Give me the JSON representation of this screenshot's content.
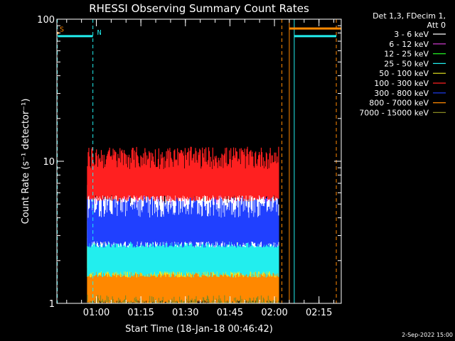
{
  "chart_data": {
    "type": "line",
    "title": "RHESSI Observing Summary Count Rates",
    "xlabel": "Start Time (18-Jan-18 00:46:42)",
    "ylabel": "Count Rate (s⁻¹ detector⁻¹)",
    "yscale": "log",
    "ylim": [
      1,
      100
    ],
    "y_ticks": [
      "1",
      "10",
      "100"
    ],
    "xlim": [
      "00:46:42",
      "02:22:30"
    ],
    "x_ticks": [
      "01:00",
      "01:15",
      "01:30",
      "01:45",
      "02:00",
      "02:15"
    ],
    "data_window": [
      "00:57:00",
      "02:01:30"
    ],
    "legend_placement": "top-right",
    "legend_header": [
      "Det 1,3, FDecim 1,",
      "Att 0"
    ],
    "series": [
      {
        "name": "3 - 6 keV",
        "color": "#ffffff",
        "low": 2.6,
        "high": 6.2
      },
      {
        "name": "6 - 12 keV",
        "color": "#e040e0",
        "low": 2.8,
        "high": 5.4
      },
      {
        "name": "12 - 25 keV",
        "color": "#22ee22",
        "low": 1.8,
        "high": 4.2
      },
      {
        "name": "25 - 50 keV",
        "color": "#22eeee",
        "low": 1.6,
        "high": 3.2
      },
      {
        "name": "50 - 100 keV",
        "color": "#eeee22",
        "low": 1.6,
        "high": 3.6
      },
      {
        "name": "100 - 300 keV",
        "color": "#ff2020",
        "low": 5.5,
        "high": 11.0
      },
      {
        "name": "300 - 800 keV",
        "color": "#2040ff",
        "low": 2.6,
        "high": 5.0
      },
      {
        "name": "800 - 7000 keV",
        "color": "#ff8800",
        "low": 1.0,
        "high": 3.0
      },
      {
        "name": "7000 - 15000 keV",
        "color": "#888822",
        "low": 1.0,
        "high": 1.0
      }
    ],
    "flags": [
      {
        "label": "S",
        "color": "#ff8800",
        "start": "00:46:42",
        "end": "00:47:20",
        "level": 80
      },
      {
        "label": "N",
        "color": "#22eeee",
        "start": "00:47:00",
        "end": "00:58:50",
        "level": 76
      },
      {
        "label": "",
        "color": "#22eeee",
        "start": "02:06:40",
        "end": "02:20:50",
        "level": 76
      },
      {
        "label": "",
        "color": "#ff8800",
        "start": "02:05:00",
        "end": "02:22:30",
        "level": 86
      }
    ],
    "vlines": [
      {
        "time": "00:46:50",
        "color": "#22eeee",
        "style": "dashed"
      },
      {
        "time": "00:58:50",
        "color": "#22eeee",
        "style": "dashed"
      },
      {
        "time": "02:02:30",
        "color": "#ff8800",
        "style": "dashed"
      },
      {
        "time": "02:05:00",
        "color": "#ff8800",
        "style": "solid"
      },
      {
        "time": "02:06:40",
        "color": "#22eeee",
        "style": "solid"
      },
      {
        "time": "02:20:50",
        "color": "#ff8800",
        "style": "dashed"
      }
    ]
  },
  "footer_date": "2-Sep-2022 15:00"
}
